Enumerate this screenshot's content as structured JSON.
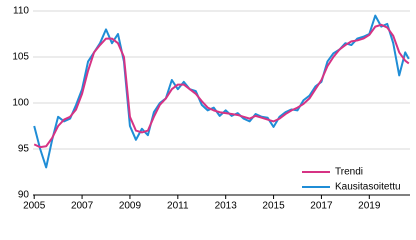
{
  "chart_data": {
    "type": "line",
    "x": [
      2005,
      2005.25,
      2005.5,
      2005.75,
      2006,
      2006.25,
      2006.5,
      2006.75,
      2007,
      2007.25,
      2007.5,
      2007.75,
      2008,
      2008.25,
      2008.5,
      2008.75,
      2009,
      2009.25,
      2009.5,
      2009.75,
      2010,
      2010.25,
      2010.5,
      2010.75,
      2011,
      2011.25,
      2011.5,
      2011.75,
      2012,
      2012.25,
      2012.5,
      2012.75,
      2013,
      2013.25,
      2013.5,
      2013.75,
      2014,
      2014.25,
      2014.5,
      2014.75,
      2015,
      2015.25,
      2015.5,
      2015.75,
      2016,
      2016.25,
      2016.5,
      2016.75,
      2017,
      2017.25,
      2017.5,
      2017.75,
      2018,
      2018.25,
      2018.5,
      2018.75,
      2019,
      2019.25,
      2019.5,
      2019.75,
      2020,
      2020.25,
      2020.5,
      2020.65
    ],
    "series": [
      {
        "name": "Trendi",
        "color": "#d63384",
        "values": [
          95.5,
          95.2,
          95.3,
          96.2,
          97.5,
          98.2,
          98.5,
          99.3,
          101,
          103.5,
          105.5,
          106.3,
          107,
          107,
          106.5,
          105,
          98.5,
          97,
          96.8,
          97,
          98.5,
          99.8,
          100.5,
          101.5,
          102,
          102,
          101.5,
          101,
          100.2,
          99.5,
          99.2,
          99,
          98.9,
          98.8,
          98.7,
          98.5,
          98.3,
          98.6,
          98.4,
          98.2,
          98,
          98.3,
          98.8,
          99.2,
          99.5,
          99.9,
          100.5,
          101.5,
          102.5,
          104,
          105,
          105.8,
          106.3,
          106.7,
          106.8,
          107,
          107.4,
          108.3,
          108.5,
          108.2,
          107.3,
          105.5,
          104.6,
          104.3
        ]
      },
      {
        "name": "Kausitasoitettu",
        "color": "#1f8dd6",
        "values": [
          97.5,
          95,
          93,
          96,
          98.5,
          98,
          98.3,
          99.8,
          101.5,
          104.5,
          105.5,
          106.5,
          108,
          106.5,
          107.5,
          104.5,
          97.5,
          96,
          97.2,
          96.5,
          99,
          100,
          100.5,
          102.5,
          101.5,
          102.3,
          101.5,
          101.3,
          99.8,
          99.2,
          99.5,
          98.6,
          99.2,
          98.6,
          98.9,
          98.3,
          98,
          98.8,
          98.5,
          98.4,
          97.4,
          98.5,
          99,
          99.3,
          99.2,
          100.3,
          100.8,
          101.8,
          102.3,
          104.5,
          105.4,
          105.8,
          106.5,
          106.3,
          107,
          107.2,
          107.5,
          109.5,
          108.3,
          108.6,
          106.5,
          103,
          105.5,
          104.8
        ]
      }
    ],
    "xlim": [
      2004.95,
      2020.7
    ],
    "xticks": [
      2005,
      2007,
      2009,
      2011,
      2013,
      2015,
      2017,
      2019
    ],
    "ylim": [
      90,
      110
    ],
    "yticks": [
      90,
      95,
      100,
      105,
      110
    ],
    "grid": true,
    "legend": "lower right"
  }
}
